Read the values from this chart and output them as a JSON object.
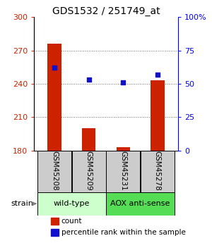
{
  "title": "GDS1532 / 251749_at",
  "samples": [
    "GSM45208",
    "GSM45209",
    "GSM45231",
    "GSM45278"
  ],
  "counts": [
    276,
    200,
    183,
    243
  ],
  "percentiles": [
    62,
    53,
    51,
    57
  ],
  "ylim_left": [
    180,
    300
  ],
  "ylim_right": [
    0,
    100
  ],
  "yticks_left": [
    180,
    210,
    240,
    270,
    300
  ],
  "yticks_right": [
    0,
    25,
    50,
    75,
    100
  ],
  "yticklabels_right": [
    "0",
    "25",
    "50",
    "75",
    "100%"
  ],
  "bar_color": "#cc2200",
  "point_color": "#1111cc",
  "grid_color": "#666666",
  "strain_groups": [
    {
      "label": "wild-type",
      "samples": [
        0,
        1
      ],
      "color": "#ccffcc"
    },
    {
      "label": "AOX anti-sense",
      "samples": [
        2,
        3
      ],
      "color": "#55dd55"
    }
  ],
  "legend_count_label": "count",
  "legend_pct_label": "percentile rank within the sample",
  "strain_label": "strain",
  "sample_box_color": "#cccccc",
  "title_fontsize": 10,
  "axis_fontsize": 8,
  "label_fontsize": 7,
  "tick_label_fontsize": 7.5
}
